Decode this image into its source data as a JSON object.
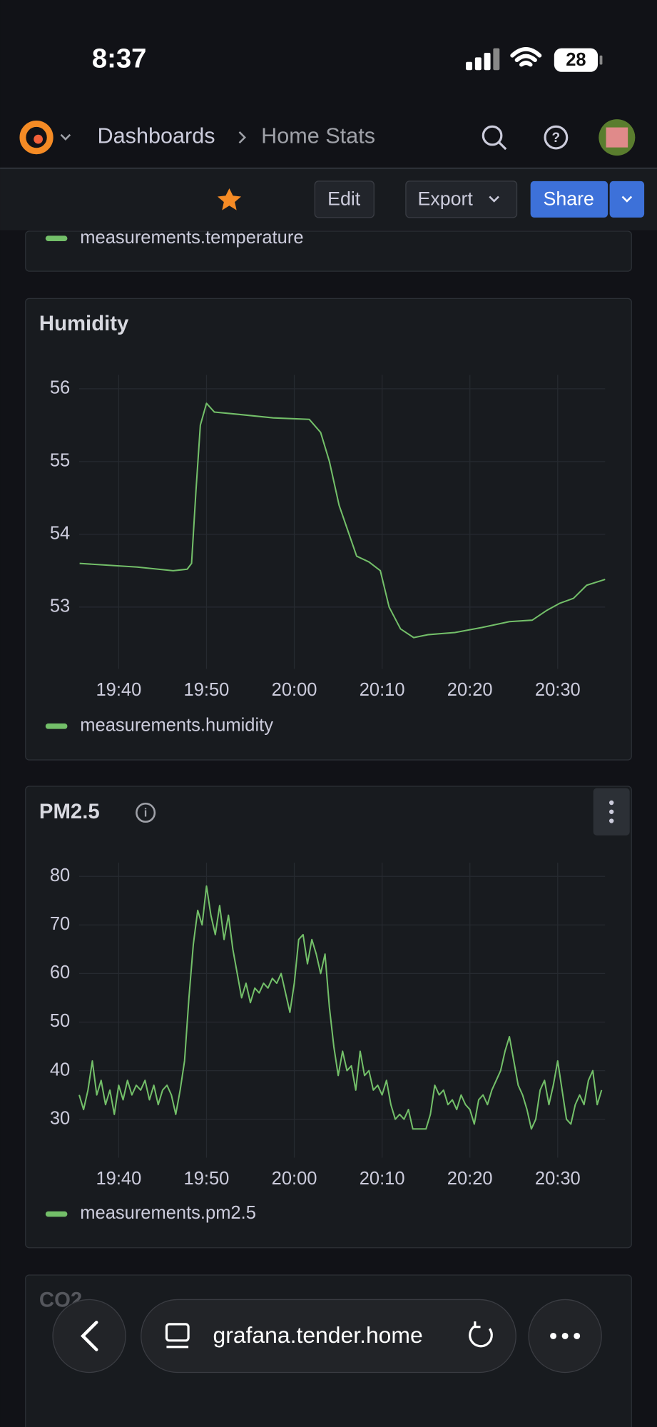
{
  "status_bar": {
    "time": "8:37",
    "battery": "28"
  },
  "nav": {
    "breadcrumb": [
      "Dashboards",
      "Home Stats"
    ]
  },
  "toolbar": {
    "edit": "Edit",
    "export": "Export",
    "share": "Share"
  },
  "top_panel": {
    "legend": "measurements.temperature"
  },
  "chart_data": [
    {
      "type": "line",
      "title": "Humidity",
      "x": [
        1175.55,
        1182.1,
        1186.2,
        1187.8,
        1188.3,
        1188.8,
        1189.3,
        1190.0,
        1190.9,
        1193.5,
        1197.6,
        1201.7,
        1203.0,
        1204.0,
        1205.1,
        1206.1,
        1207.1,
        1208.5,
        1209.8,
        1210.8,
        1212.1,
        1213.6,
        1215.2,
        1218.3,
        1221.4,
        1224.5,
        1227.1,
        1228.7,
        1230.2,
        1231.8,
        1233.3,
        1235.4
      ],
      "series": [
        {
          "name": "measurements.humidity",
          "color": "#73bf69",
          "values": [
            53.6,
            53.55,
            53.5,
            53.52,
            53.6,
            54.6,
            55.5,
            55.8,
            55.68,
            55.65,
            55.6,
            55.58,
            55.4,
            55.0,
            54.4,
            54.05,
            53.7,
            53.62,
            53.5,
            53.0,
            52.7,
            52.58,
            52.62,
            52.65,
            52.72,
            52.8,
            52.82,
            52.95,
            53.05,
            53.12,
            53.3,
            53.38
          ]
        }
      ],
      "xlim": [
        1175.5,
        1235.4
      ],
      "xticks": [
        {
          "value": 1180,
          "label": "19:40"
        },
        {
          "value": 1190,
          "label": "19:50"
        },
        {
          "value": 1200,
          "label": "20:00"
        },
        {
          "value": 1210,
          "label": "20:10"
        },
        {
          "value": 1220,
          "label": "20:20"
        },
        {
          "value": 1230,
          "label": "20:30"
        }
      ],
      "ylim": [
        52.15,
        56.19
      ],
      "yticks": [
        53,
        54,
        55,
        56
      ],
      "grid": true
    },
    {
      "type": "line",
      "title": "PM2.5",
      "x": [
        1175.5,
        1176,
        1176.5,
        1177,
        1177.5,
        1178,
        1178.5,
        1179,
        1179.5,
        1180,
        1180.5,
        1181,
        1181.5,
        1182,
        1182.5,
        1183,
        1183.5,
        1184,
        1184.5,
        1185,
        1185.5,
        1186,
        1186.5,
        1187,
        1187.5,
        1188,
        1188.5,
        1189,
        1189.5,
        1190,
        1190.5,
        1191,
        1191.5,
        1192,
        1192.5,
        1193,
        1193.5,
        1194,
        1194.5,
        1195,
        1195.5,
        1196,
        1196.5,
        1197,
        1197.5,
        1198,
        1198.5,
        1199,
        1199.5,
        1200,
        1200.5,
        1201,
        1201.5,
        1202,
        1202.5,
        1203,
        1203.5,
        1204,
        1204.5,
        1205,
        1205.5,
        1206,
        1206.5,
        1207,
        1207.5,
        1208,
        1208.5,
        1209,
        1209.5,
        1210,
        1210.5,
        1211,
        1211.5,
        1212,
        1212.5,
        1213,
        1213.5,
        1214,
        1214.5,
        1215,
        1215.5,
        1216,
        1216.5,
        1217,
        1217.5,
        1218,
        1218.5,
        1219,
        1219.5,
        1220,
        1220.5,
        1221,
        1221.5,
        1222,
        1222.5,
        1223,
        1223.5,
        1224,
        1224.5,
        1225,
        1225.5,
        1226,
        1226.5,
        1227,
        1227.5,
        1228,
        1228.5,
        1229,
        1229.5,
        1230,
        1230.5,
        1231,
        1231.5,
        1232,
        1232.5,
        1233,
        1233.5,
        1234,
        1234.5,
        1235
      ],
      "series": [
        {
          "name": "measurements.pm2.5",
          "color": "#73bf69",
          "values": [
            35,
            32,
            36,
            42,
            35,
            38,
            33,
            36,
            31,
            37,
            34,
            38,
            35,
            37,
            36,
            38,
            34,
            37,
            33,
            36,
            37,
            35,
            31,
            36,
            42,
            55,
            66,
            73,
            70,
            78,
            72,
            68,
            74,
            67,
            72,
            65,
            60,
            55,
            58,
            54,
            57,
            56,
            58,
            57,
            59,
            58,
            60,
            56,
            52,
            58,
            67,
            68,
            62,
            67,
            64,
            60,
            64,
            53,
            45,
            39,
            44,
            40,
            41,
            36,
            44,
            39,
            40,
            36,
            37,
            35,
            38,
            33,
            30,
            31,
            30,
            32,
            28,
            28,
            28,
            28,
            31,
            37,
            35,
            36,
            33,
            34,
            32,
            35,
            33,
            32,
            29,
            34,
            35,
            33,
            36,
            38,
            40,
            44,
            47,
            42,
            37,
            35,
            32,
            28,
            30,
            36,
            38,
            33,
            37,
            42,
            36,
            30,
            29,
            33,
            35,
            33,
            38,
            40,
            33,
            36
          ]
        }
      ],
      "xlim": [
        1175.5,
        1235.4
      ],
      "xticks": [
        {
          "value": 1180,
          "label": "19:40"
        },
        {
          "value": 1190,
          "label": "19:50"
        },
        {
          "value": 1200,
          "label": "20:00"
        },
        {
          "value": 1210,
          "label": "20:10"
        },
        {
          "value": 1220,
          "label": "20:20"
        },
        {
          "value": 1230,
          "label": "20:30"
        }
      ],
      "ylim": [
        22.1,
        82.8
      ],
      "yticks": [
        30,
        40,
        50,
        60,
        70,
        80
      ],
      "grid": true
    }
  ],
  "bottom_panel": {
    "title": "CO2"
  },
  "browser": {
    "url": "grafana.tender.home"
  }
}
